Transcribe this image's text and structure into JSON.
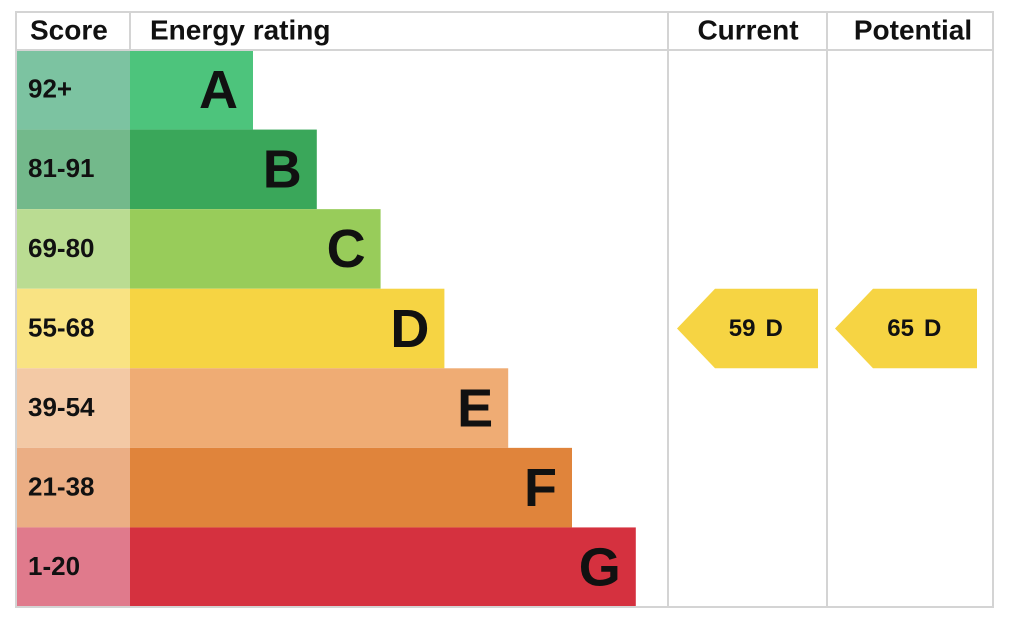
{
  "header": {
    "score": "Score",
    "rating": "Energy rating",
    "current": "Current",
    "potential": "Potential"
  },
  "bands": [
    {
      "score": "92+",
      "letter": "A"
    },
    {
      "score": "81-91",
      "letter": "B"
    },
    {
      "score": "69-80",
      "letter": "C"
    },
    {
      "score": "55-68",
      "letter": "D"
    },
    {
      "score": "39-54",
      "letter": "E"
    },
    {
      "score": "21-38",
      "letter": "F"
    },
    {
      "score": "1-20",
      "letter": "G"
    }
  ],
  "current": {
    "score": "59",
    "letter": "D"
  },
  "potential": {
    "score": "65",
    "letter": "D"
  }
}
